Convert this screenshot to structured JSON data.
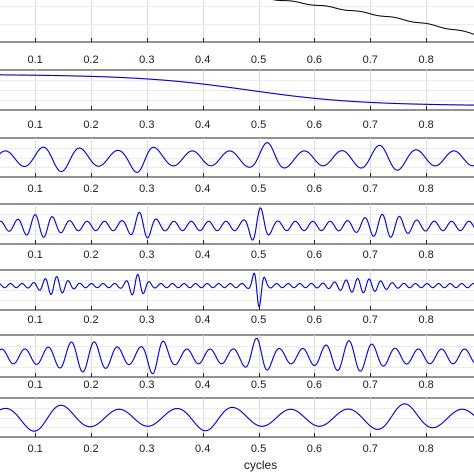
{
  "chart_data": [
    {
      "type": "line",
      "series": [
        {
          "color": "#000000",
          "shape": "descending-with-small-spikes"
        }
      ],
      "xlim": [
        0.03,
        0.9
      ],
      "xticks": [
        "0.1",
        "0.2",
        "0.3",
        "0.4",
        "0.5",
        "0.6",
        "0.7",
        "0.8"
      ],
      "grid": true
    },
    {
      "type": "line",
      "series": [
        {
          "color": "#0000cc",
          "shape": "smooth-descending-trend"
        }
      ],
      "xlim": [
        0.03,
        0.9
      ],
      "xticks": [
        "0.1",
        "0.2",
        "0.3",
        "0.4",
        "0.5",
        "0.6",
        "0.7",
        "0.8"
      ],
      "grid": true
    },
    {
      "type": "line",
      "series": [
        {
          "color": "#0000cc",
          "shape": "oscillation"
        }
      ],
      "xlim": [
        0.03,
        0.9
      ],
      "xticks": [
        "0.1",
        "0.2",
        "0.3",
        "0.4",
        "0.5",
        "0.6",
        "0.7",
        "0.8"
      ],
      "grid": true
    },
    {
      "type": "line",
      "series": [
        {
          "color": "#0000cc",
          "shape": "oscillation"
        }
      ],
      "xlim": [
        0.03,
        0.9
      ],
      "xticks": [
        "0.1",
        "0.2",
        "0.3",
        "0.4",
        "0.5",
        "0.6",
        "0.7",
        "0.8"
      ],
      "grid": true
    },
    {
      "type": "line",
      "series": [
        {
          "color": "#0000cc",
          "shape": "oscillation"
        }
      ],
      "xlim": [
        0.03,
        0.9
      ],
      "xticks": [
        "0.1",
        "0.2",
        "0.3",
        "0.4",
        "0.5",
        "0.6",
        "0.7",
        "0.8"
      ],
      "grid": true
    },
    {
      "type": "line",
      "series": [
        {
          "color": "#0000cc",
          "shape": "oscillation"
        }
      ],
      "xlim": [
        0.03,
        0.9
      ],
      "xticks": [
        "0.1",
        "0.2",
        "0.3",
        "0.4",
        "0.5",
        "0.6",
        "0.7",
        "0.8"
      ],
      "grid": true
    },
    {
      "type": "line",
      "series": [
        {
          "color": "#0000cc",
          "shape": "oscillation"
        }
      ],
      "xlim": [
        0.03,
        0.9
      ],
      "xticks": [
        "0.1",
        "0.2",
        "0.3",
        "0.4",
        "0.5",
        "0.6",
        "0.7",
        "0.8"
      ],
      "xlabel": "cycles",
      "grid": true
    }
  ]
}
